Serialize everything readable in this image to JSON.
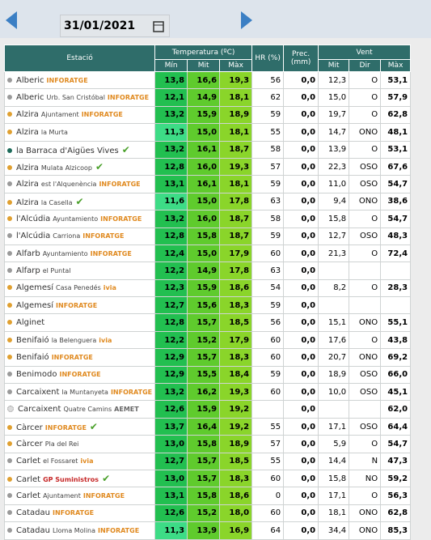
{
  "date": "31/01/2021",
  "header": {
    "station": "Estació",
    "temperature": "Temperatura (ºC)",
    "humidity": "HR (%)",
    "precipitation": "Prec. (mm)",
    "wind": "Vent",
    "sub": [
      "Mín",
      "Mit",
      "Màx",
      "Mit",
      "Dir",
      "Màx"
    ]
  },
  "rows": [
    {
      "name": "Alberic",
      "place": null,
      "network": "INFORATGE",
      "verified": false,
      "dot": "#9a9a9a",
      "cells": [
        "13,8",
        "16,6",
        "19,3",
        "56",
        "0,0",
        "12,3",
        "O",
        "53,1"
      ]
    },
    {
      "name": "Alberic",
      "place": "Urb. San Cristóbal",
      "network": "INFORATGE",
      "verified": false,
      "dot": "#9a9a9a",
      "cells": [
        "12,1",
        "14,9",
        "18,1",
        "62",
        "0,0",
        "15,0",
        "O",
        "57,9"
      ]
    },
    {
      "name": "Alzira",
      "place": "Ajuntament",
      "network": "INFORATGE",
      "verified": false,
      "dot": "#e0a030",
      "cells": [
        "13,2",
        "15,9",
        "18,9",
        "59",
        "0,0",
        "19,7",
        "O",
        "62,8"
      ]
    },
    {
      "name": "Alzira",
      "place": "la Murta",
      "network": null,
      "verified": false,
      "dot": "#e0a030",
      "cells": [
        "11,3",
        "15,0",
        "18,1",
        "55",
        "0,0",
        "14,7",
        "ONO",
        "48,1"
      ]
    },
    {
      "name": "la Barraca d'Aigües Vives",
      "place": null,
      "network": null,
      "verified": true,
      "dot": "#1d6b5a",
      "cells": [
        "13,2",
        "16,1",
        "18,7",
        "58",
        "0,0",
        "13,9",
        "O",
        "53,1"
      ]
    },
    {
      "name": "Alzira",
      "place": "Mulata Alzicoop",
      "network": null,
      "verified": true,
      "dot": "#e0a030",
      "cells": [
        "12,8",
        "16,0",
        "19,3",
        "57",
        "0,0",
        "22,3",
        "OSO",
        "67,6"
      ]
    },
    {
      "name": "Alzira",
      "place": "est l'Alquenència",
      "network": "INFORATGE",
      "verified": false,
      "dot": "#9a9a9a",
      "cells": [
        "13,1",
        "16,1",
        "18,1",
        "59",
        "0,0",
        "11,0",
        "OSO",
        "54,7"
      ]
    },
    {
      "name": "Alzira",
      "place": "la Casella",
      "network": null,
      "verified": true,
      "dot": "#e0a030",
      "cells": [
        "11,6",
        "15,0",
        "17,8",
        "63",
        "0,0",
        "9,4",
        "ONO",
        "38,6"
      ]
    },
    {
      "name": "l'Alcúdia",
      "place": "Ayuntamiento",
      "network": "INFORATGE",
      "verified": false,
      "dot": "#e0a030",
      "cells": [
        "13,2",
        "16,0",
        "18,7",
        "58",
        "0,0",
        "15,8",
        "O",
        "54,7"
      ]
    },
    {
      "name": "l'Alcúdia",
      "place": "Carriona",
      "network": "INFORATGE",
      "verified": false,
      "dot": "#9a9a9a",
      "cells": [
        "12,8",
        "15,8",
        "18,7",
        "59",
        "0,0",
        "12,7",
        "OSO",
        "48,3"
      ]
    },
    {
      "name": "Alfarb",
      "place": "Ayuntamiento",
      "network": "INFORATGE",
      "verified": false,
      "dot": "#9a9a9a",
      "cells": [
        "12,4",
        "15,0",
        "17,9",
        "60",
        "0,0",
        "21,3",
        "O",
        "72,4"
      ]
    },
    {
      "name": "Alfarp",
      "place": "el Puntal",
      "network": null,
      "verified": false,
      "dot": "#9a9a9a",
      "cells": [
        "12,2",
        "14,9",
        "17,8",
        "63",
        "0,0",
        null,
        null,
        null
      ]
    },
    {
      "name": "Algemesí",
      "place": "Casa Penedés",
      "network": "ivia",
      "verified": false,
      "dot": "#e0a030",
      "cells": [
        "12,3",
        "15,9",
        "18,6",
        "54",
        "0,0",
        "8,2",
        "O",
        "28,3"
      ]
    },
    {
      "name": "Algemesí",
      "place": null,
      "network": "INFORATGE",
      "verified": false,
      "dot": "#e0a030",
      "cells": [
        "12,7",
        "15,6",
        "18,3",
        "59",
        "0,0",
        null,
        null,
        null
      ]
    },
    {
      "name": "Alginet",
      "place": null,
      "network": null,
      "verified": false,
      "dot": "#e0a030",
      "cells": [
        "12,8",
        "15,7",
        "18,5",
        "56",
        "0,0",
        "15,1",
        "ONO",
        "55,1"
      ]
    },
    {
      "name": "Benifaió",
      "place": "la Belenguera",
      "network": "ivia",
      "verified": false,
      "dot": "#e0a030",
      "cells": [
        "12,2",
        "15,2",
        "17,9",
        "60",
        "0,0",
        "17,6",
        "O",
        "43,8"
      ]
    },
    {
      "name": "Benifaió",
      "place": null,
      "network": "INFORATGE",
      "verified": false,
      "dot": "#e0a030",
      "cells": [
        "12,9",
        "15,7",
        "18,3",
        "60",
        "0,0",
        "20,7",
        "ONO",
        "69,2"
      ]
    },
    {
      "name": "Benimodo",
      "place": null,
      "network": "INFORATGE",
      "verified": false,
      "dot": "#9a9a9a",
      "cells": [
        "12,9",
        "15,5",
        "18,4",
        "59",
        "0,0",
        "18,9",
        "OSO",
        "66,0"
      ]
    },
    {
      "name": "Carcaixent",
      "place": "la Muntanyeta",
      "network": "INFORATGE",
      "verified": false,
      "dot": "#9a9a9a",
      "cells": [
        "13,2",
        "16,2",
        "19,3",
        "60",
        "0,0",
        "10,0",
        "OSO",
        "45,1"
      ]
    },
    {
      "name": "Carcaixent",
      "place": "Quatre Camins",
      "network": "AEMET",
      "verified": false,
      "dot": "#dddddd",
      "cells": [
        "12,6",
        "15,9",
        "19,2",
        null,
        "0,0",
        null,
        null,
        "62,0"
      ]
    },
    {
      "name": "Càrcer",
      "place": null,
      "network": "INFORATGE",
      "verified": true,
      "dot": "#e0a030",
      "cells": [
        "13,7",
        "16,4",
        "19,2",
        "55",
        "0,0",
        "17,1",
        "OSO",
        "64,4"
      ]
    },
    {
      "name": "Càrcer",
      "place": "Pla del Rei",
      "network": null,
      "verified": false,
      "dot": "#e0a030",
      "cells": [
        "13,0",
        "15,8",
        "18,9",
        "57",
        "0,0",
        "5,9",
        "O",
        "54,7"
      ]
    },
    {
      "name": "Carlet",
      "place": "el Fossaret",
      "network": "ivia",
      "verified": false,
      "dot": "#9a9a9a",
      "cells": [
        "12,7",
        "15,7",
        "18,5",
        "55",
        "0,0",
        "14,4",
        "N",
        "47,3"
      ]
    },
    {
      "name": "Carlet",
      "place": null,
      "network": "GP Suministros",
      "verified": true,
      "dot": "#e0a030",
      "cells": [
        "13,0",
        "15,7",
        "18,3",
        "60",
        "0,0",
        "15,8",
        "NO",
        "59,2"
      ]
    },
    {
      "name": "Carlet",
      "place": "Ajuntament",
      "network": "INFORATGE",
      "verified": false,
      "dot": "#9a9a9a",
      "cells": [
        "13,1",
        "15,8",
        "18,6",
        "0",
        "0,0",
        "17,1",
        "O",
        "56,3"
      ]
    },
    {
      "name": "Catadau",
      "place": null,
      "network": "INFORATGE",
      "verified": false,
      "dot": "#9a9a9a",
      "cells": [
        "12,6",
        "15,2",
        "18,0",
        "60",
        "0,0",
        "18,1",
        "ONO",
        "62,8"
      ]
    },
    {
      "name": "Catadau",
      "place": "Lloma Molina",
      "network": "INFORATGE",
      "verified": false,
      "dot": "#9a9a9a",
      "cells": [
        "11,3",
        "13,9",
        "16,9",
        "64",
        "0,0",
        "34,4",
        "ONO",
        "85,3"
      ]
    }
  ]
}
